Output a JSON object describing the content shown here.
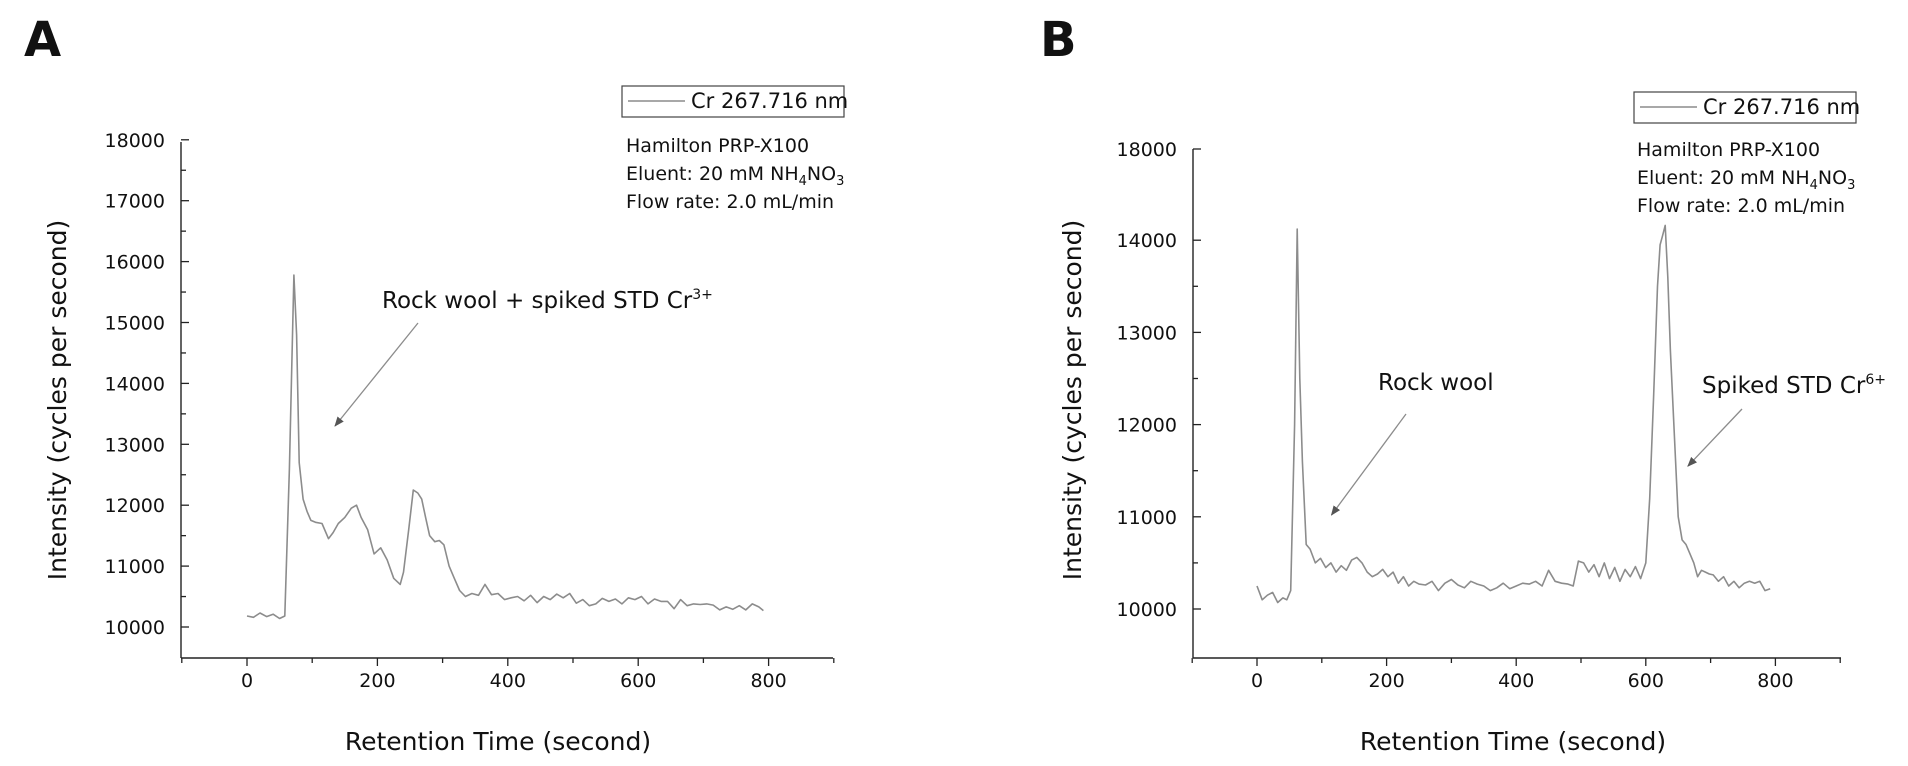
{
  "chart_data": [
    {
      "type": "line",
      "panel_label": "A",
      "xlabel": "Retention Time (second)",
      "ylabel": "Intensity (cycles per second)",
      "xlim": [
        -100,
        900
      ],
      "ylim": [
        9500,
        18000
      ],
      "xticks": [
        0,
        200,
        400,
        600,
        800
      ],
      "yticks": [
        10000,
        11000,
        12000,
        13000,
        14000,
        15000,
        16000,
        17000,
        18000
      ],
      "legend": {
        "label": "Cr 267.716 nm",
        "placement": "top-right"
      },
      "info": [
        "Hamilton PRP-X100",
        "Eluent: 20 mM NH",
        "Flow rate: 2.0 mL/min"
      ],
      "eluent_subscripts": [
        "4",
        "3"
      ],
      "eluent_mid": "NO",
      "annotations": [
        {
          "text": "Rock wool + spiked STD Cr",
          "superscript": "3+",
          "arrow_to": [
            135,
            13300
          ]
        }
      ],
      "colors": {
        "series": "#8c8c8c",
        "arrow": "#8c8c8c"
      },
      "series": [
        {
          "x": [
            0,
            10,
            20,
            30,
            40,
            50,
            58,
            65,
            72,
            76,
            80,
            86,
            92,
            98,
            105,
            115,
            125,
            132,
            140,
            150,
            160,
            168,
            175,
            185,
            195,
            205,
            215,
            225,
            235,
            240,
            248,
            255,
            262,
            268,
            274,
            280,
            288,
            295,
            302,
            310,
            318,
            326,
            335,
            345,
            355,
            365,
            375,
            385,
            395,
            405,
            415,
            425,
            435,
            445,
            455,
            465,
            475,
            485,
            495,
            505,
            515,
            525,
            535,
            545,
            555,
            565,
            575,
            585,
            595,
            605,
            615,
            625,
            635,
            645,
            655,
            665,
            675,
            685,
            695,
            705,
            715,
            725,
            735,
            745,
            755,
            765,
            775,
            785,
            792
          ],
          "y": [
            10180,
            10160,
            10230,
            10170,
            10210,
            10140,
            10180,
            12600,
            15780,
            14800,
            12700,
            12100,
            11900,
            11750,
            11720,
            11700,
            11450,
            11550,
            11700,
            11800,
            11950,
            12000,
            11800,
            11600,
            11200,
            11300,
            11100,
            10800,
            10700,
            10900,
            11600,
            12250,
            12200,
            12100,
            11800,
            11500,
            11400,
            11420,
            11350,
            11000,
            10800,
            10600,
            10500,
            10550,
            10520,
            10700,
            10530,
            10550,
            10450,
            10480,
            10500,
            10430,
            10520,
            10400,
            10500,
            10450,
            10540,
            10480,
            10550,
            10390,
            10450,
            10350,
            10380,
            10470,
            10420,
            10460,
            10380,
            10480,
            10450,
            10500,
            10380,
            10460,
            10420,
            10420,
            10300,
            10450,
            10350,
            10380,
            10370,
            10380,
            10360,
            10280,
            10330,
            10290,
            10350,
            10280,
            10380,
            10330,
            10270
          ]
        }
      ]
    },
    {
      "type": "line",
      "panel_label": "B",
      "xlabel": "Retention Time (second)",
      "ylabel": "Intensity (cycles per second)",
      "xlim": [
        -100,
        900
      ],
      "ylim": [
        9500,
        18000
      ],
      "y_axis_break": [
        14500,
        17500
      ],
      "xticks": [
        0,
        200,
        400,
        600,
        800
      ],
      "yticks": [
        10000,
        11000,
        12000,
        13000,
        14000,
        18000
      ],
      "legend": {
        "label": "Cr 267.716 nm",
        "placement": "top-right"
      },
      "info": [
        "Hamilton PRP-X100",
        "Eluent: 20 mM NH",
        "Flow rate: 2.0 mL/min"
      ],
      "eluent_subscripts": [
        "4",
        "3"
      ],
      "eluent_mid": "NO",
      "annotations": [
        {
          "text": "Rock wool",
          "superscript": "",
          "arrow_to": [
            115,
            11020
          ]
        },
        {
          "text": "Spiked STD Cr",
          "superscript": "6+",
          "arrow_to": [
            665,
            11550
          ]
        }
      ],
      "colors": {
        "series": "#8c8c8c",
        "arrow": "#8c8c8c"
      },
      "series": [
        {
          "x": [
            0,
            8,
            16,
            24,
            32,
            40,
            46,
            52,
            58,
            62,
            66,
            70,
            76,
            82,
            90,
            98,
            106,
            114,
            122,
            130,
            138,
            146,
            154,
            162,
            170,
            178,
            186,
            194,
            202,
            210,
            218,
            226,
            234,
            242,
            250,
            260,
            270,
            280,
            290,
            300,
            310,
            320,
            330,
            340,
            350,
            360,
            370,
            380,
            390,
            400,
            410,
            420,
            430,
            440,
            450,
            460,
            470,
            480,
            488,
            496,
            504,
            512,
            520,
            528,
            536,
            544,
            552,
            560,
            568,
            576,
            584,
            592,
            600,
            606,
            612,
            618,
            622,
            626,
            630,
            634,
            638,
            642,
            646,
            650,
            656,
            662,
            668,
            674,
            680,
            686,
            692,
            698,
            704,
            712,
            720,
            728,
            736,
            744,
            752,
            760,
            768,
            776,
            784,
            792
          ],
          "y": [
            10250,
            10100,
            10150,
            10180,
            10070,
            10120,
            10100,
            10200,
            12000,
            14120,
            12500,
            11600,
            10700,
            10650,
            10500,
            10550,
            10450,
            10500,
            10400,
            10470,
            10420,
            10530,
            10560,
            10500,
            10400,
            10350,
            10380,
            10430,
            10350,
            10400,
            10280,
            10350,
            10250,
            10300,
            10270,
            10260,
            10300,
            10200,
            10280,
            10320,
            10260,
            10230,
            10300,
            10270,
            10250,
            10200,
            10230,
            10280,
            10220,
            10250,
            10280,
            10270,
            10300,
            10250,
            10420,
            10300,
            10280,
            10270,
            10250,
            10520,
            10500,
            10400,
            10480,
            10350,
            10500,
            10330,
            10450,
            10300,
            10430,
            10350,
            10460,
            10330,
            10500,
            11200,
            12300,
            13500,
            13950,
            14050,
            14160,
            13600,
            12800,
            12200,
            11600,
            11000,
            10750,
            10700,
            10600,
            10500,
            10350,
            10420,
            10400,
            10380,
            10370,
            10300,
            10350,
            10250,
            10300,
            10230,
            10280,
            10300,
            10280,
            10300,
            10200,
            10220
          ]
        }
      ]
    }
  ]
}
